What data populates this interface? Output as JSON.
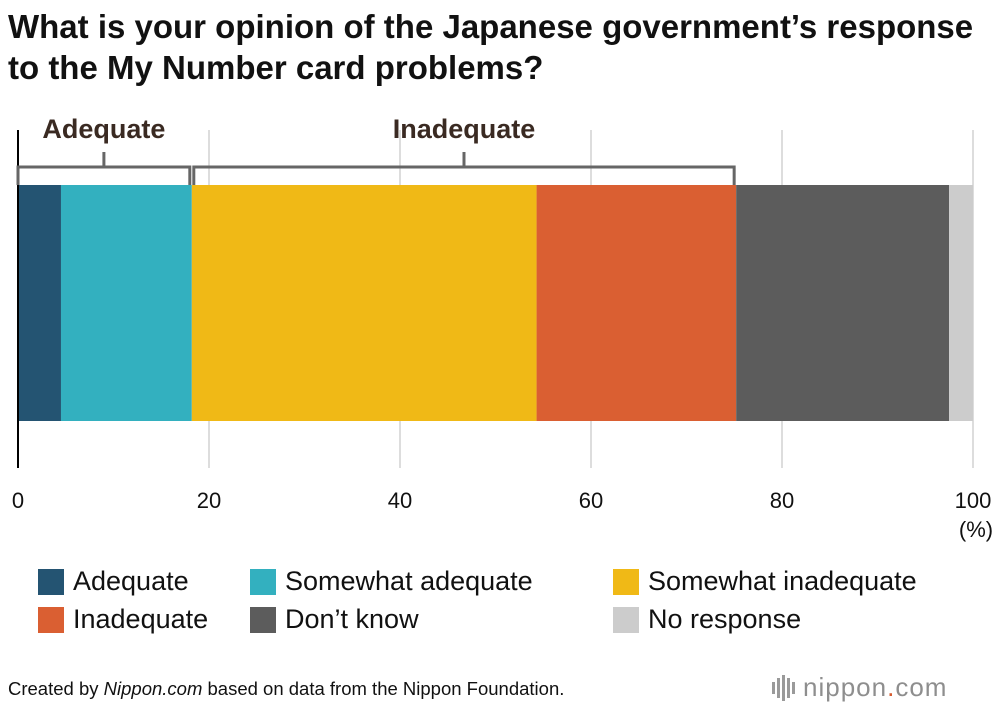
{
  "chart_data": {
    "type": "bar",
    "orientation": "horizontal-stacked",
    "title": "What is your opinion of the Japanese government’s response to the My Number card problems?",
    "xlabel": "(%)",
    "xlim": [
      0,
      100
    ],
    "x_ticks": [
      "0",
      "20",
      "40",
      "60",
      "80",
      "100"
    ],
    "grid": true,
    "series": [
      {
        "name": "Adequate",
        "value": 4.5,
        "color": "#245472"
      },
      {
        "name": "Somewhat adequate",
        "value": 13.7,
        "color": "#33b0bf"
      },
      {
        "name": "Somewhat inadequate",
        "value": 36.1,
        "color": "#f0b916"
      },
      {
        "name": "Inadequate",
        "value": 20.9,
        "color": "#da5f32"
      },
      {
        "name": "Don’t know",
        "value": 22.3,
        "color": "#5c5c5c"
      },
      {
        "name": "No response",
        "value": 2.5,
        "color": "#cccccc"
      }
    ],
    "groups": [
      {
        "label": "Adequate",
        "series": [
          "Adequate",
          "Somewhat adequate"
        ]
      },
      {
        "label": "Inadequate",
        "series": [
          "Somewhat inadequate",
          "Inadequate"
        ]
      }
    ]
  },
  "footer": {
    "credit_prefix": "Created by ",
    "credit_source": "Nippon.com",
    "credit_suffix": " based on data from the Nippon Foundation.",
    "logo_main": "nippon",
    "logo_dot": ".",
    "logo_tld": "com"
  }
}
